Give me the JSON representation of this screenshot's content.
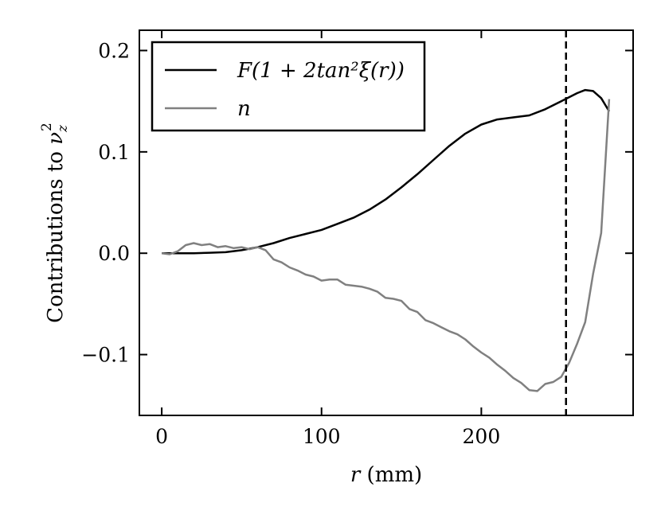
{
  "chart_data": {
    "type": "line",
    "xlabel_var": "r",
    "xlabel_unit": " (mm)",
    "ylabel_text": "Contributions to ",
    "ylabel_var": "ν",
    "ylabel_sub": "z",
    "ylabel_sup": "2",
    "xlim": [
      -14,
      295
    ],
    "ylim": [
      -0.16,
      0.22
    ],
    "xticks": [
      0,
      100,
      200
    ],
    "xtick_labels": [
      "0",
      "100",
      "200"
    ],
    "yticks": [
      -0.1,
      0.0,
      0.1,
      0.2
    ],
    "ytick_labels": [
      "−0.1",
      "0.0",
      "0.1",
      "0.2"
    ],
    "vline_x": 253,
    "legend_position": "upper-left",
    "series": [
      {
        "name": "F(1 + 2tan²ξ(r))",
        "color": "#000000",
        "x": [
          0,
          10,
          20,
          30,
          40,
          50,
          60,
          70,
          80,
          90,
          100,
          110,
          120,
          130,
          140,
          150,
          160,
          170,
          180,
          190,
          200,
          210,
          220,
          230,
          240,
          250,
          255,
          260,
          265,
          270,
          275,
          280
        ],
        "y": [
          0.0,
          0.0,
          0.0,
          0.0005,
          0.001,
          0.003,
          0.006,
          0.01,
          0.015,
          0.019,
          0.023,
          0.029,
          0.035,
          0.043,
          0.053,
          0.065,
          0.078,
          0.092,
          0.106,
          0.118,
          0.127,
          0.132,
          0.134,
          0.136,
          0.142,
          0.15,
          0.154,
          0.158,
          0.161,
          0.16,
          0.153,
          0.14
        ]
      },
      {
        "name": "n",
        "color": "#808080",
        "x": [
          0,
          5,
          10,
          15,
          20,
          25,
          30,
          35,
          40,
          45,
          50,
          55,
          60,
          65,
          70,
          75,
          80,
          85,
          90,
          95,
          100,
          105,
          110,
          115,
          120,
          125,
          130,
          135,
          140,
          145,
          150,
          155,
          160,
          165,
          170,
          175,
          180,
          185,
          190,
          195,
          200,
          205,
          210,
          215,
          220,
          225,
          230,
          235,
          240,
          245,
          250,
          255,
          260,
          265,
          270,
          275,
          280
        ],
        "y": [
          0.0,
          -0.001,
          0.002,
          0.008,
          0.01,
          0.008,
          0.009,
          0.006,
          0.007,
          0.005,
          0.006,
          0.004,
          0.006,
          0.003,
          -0.006,
          -0.009,
          -0.014,
          -0.017,
          -0.021,
          -0.023,
          -0.027,
          -0.026,
          -0.026,
          -0.031,
          -0.032,
          -0.033,
          -0.035,
          -0.038,
          -0.044,
          -0.045,
          -0.047,
          -0.055,
          -0.058,
          -0.066,
          -0.069,
          -0.073,
          -0.077,
          -0.08,
          -0.085,
          -0.092,
          -0.098,
          -0.103,
          -0.11,
          -0.116,
          -0.123,
          -0.128,
          -0.135,
          -0.136,
          -0.129,
          -0.127,
          -0.122,
          -0.108,
          -0.089,
          -0.068,
          -0.02,
          0.02,
          0.152
        ]
      }
    ]
  }
}
